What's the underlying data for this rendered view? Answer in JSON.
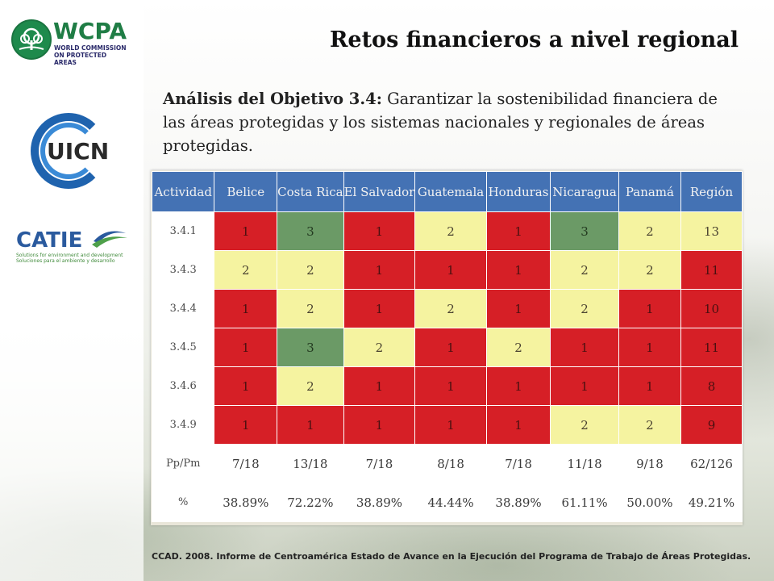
{
  "slide": {
    "title": "Retos financieros a nivel regional",
    "intro_lead": "Análisis del Objetivo 3.4:",
    "intro_text": " Garantizar la sostenibilidad financiera de las áreas protegidas y los sistemas nacionales y regionales de áreas protegidas.",
    "footer": "CCAD. 2008. Informe de Centroamérica Estado de Avance en la Ejecución del Programa de Trabajo de Áreas Protegidas."
  },
  "logos": {
    "wcpa": {
      "name": "WCPA",
      "line1": "WORLD COMMISSION",
      "line2": "ON PROTECTED AREAS",
      "icon": "tree-emblem-icon"
    },
    "uicn": {
      "name": "UICN",
      "icon": "ring-emblem-icon"
    },
    "catie": {
      "name": "CATIE",
      "line1": "Solutions for environment and development",
      "line2": "Soluciones para el ambiente y desarrollo",
      "icon": "swoosh-icon"
    }
  },
  "colors": {
    "red": "#d61f26",
    "yellow": "#f5f3a0",
    "green": "#6b9a66",
    "header": "#4472b4"
  },
  "table": {
    "headers": [
      "Actividad",
      "Belice",
      "Costa Rica",
      "El Salvador",
      "Guatemala",
      "Honduras",
      "Nicaragua",
      "Panamá",
      "Región"
    ],
    "rows": [
      {
        "label": "3.4.1",
        "cells": [
          {
            "v": "1",
            "c": "red"
          },
          {
            "v": "3",
            "c": "green"
          },
          {
            "v": "1",
            "c": "red"
          },
          {
            "v": "2",
            "c": "yellow"
          },
          {
            "v": "1",
            "c": "red"
          },
          {
            "v": "3",
            "c": "green"
          },
          {
            "v": "2",
            "c": "yellow"
          },
          {
            "v": "13",
            "c": "yellow"
          }
        ]
      },
      {
        "label": "3.4.3",
        "cells": [
          {
            "v": "2",
            "c": "yellow"
          },
          {
            "v": "2",
            "c": "yellow"
          },
          {
            "v": "1",
            "c": "red"
          },
          {
            "v": "1",
            "c": "red"
          },
          {
            "v": "1",
            "c": "red"
          },
          {
            "v": "2",
            "c": "yellow"
          },
          {
            "v": "2",
            "c": "yellow"
          },
          {
            "v": "11",
            "c": "red"
          }
        ]
      },
      {
        "label": "3.4.4",
        "cells": [
          {
            "v": "1",
            "c": "red"
          },
          {
            "v": "2",
            "c": "yellow"
          },
          {
            "v": "1",
            "c": "red"
          },
          {
            "v": "2",
            "c": "yellow"
          },
          {
            "v": "1",
            "c": "red"
          },
          {
            "v": "2",
            "c": "yellow"
          },
          {
            "v": "1",
            "c": "red"
          },
          {
            "v": "10",
            "c": "red"
          }
        ]
      },
      {
        "label": "3.4.5",
        "cells": [
          {
            "v": "1",
            "c": "red"
          },
          {
            "v": "3",
            "c": "green"
          },
          {
            "v": "2",
            "c": "yellow"
          },
          {
            "v": "1",
            "c": "red"
          },
          {
            "v": "2",
            "c": "yellow"
          },
          {
            "v": "1",
            "c": "red"
          },
          {
            "v": "1",
            "c": "red"
          },
          {
            "v": "11",
            "c": "red"
          }
        ]
      },
      {
        "label": "3.4.6",
        "cells": [
          {
            "v": "1",
            "c": "red"
          },
          {
            "v": "2",
            "c": "yellow"
          },
          {
            "v": "1",
            "c": "red"
          },
          {
            "v": "1",
            "c": "red"
          },
          {
            "v": "1",
            "c": "red"
          },
          {
            "v": "1",
            "c": "red"
          },
          {
            "v": "1",
            "c": "red"
          },
          {
            "v": "8",
            "c": "red"
          }
        ]
      },
      {
        "label": "3.4.9",
        "cells": [
          {
            "v": "1",
            "c": "red"
          },
          {
            "v": "1",
            "c": "red"
          },
          {
            "v": "1",
            "c": "red"
          },
          {
            "v": "1",
            "c": "red"
          },
          {
            "v": "1",
            "c": "red"
          },
          {
            "v": "2",
            "c": "yellow"
          },
          {
            "v": "2",
            "c": "yellow"
          },
          {
            "v": "9",
            "c": "red"
          }
        ]
      },
      {
        "label": "Pp/Pm",
        "cells": [
          {
            "v": "7/18",
            "c": "white"
          },
          {
            "v": "13/18",
            "c": "white"
          },
          {
            "v": "7/18",
            "c": "white"
          },
          {
            "v": "8/18",
            "c": "white"
          },
          {
            "v": "7/18",
            "c": "white"
          },
          {
            "v": "11/18",
            "c": "white"
          },
          {
            "v": "9/18",
            "c": "white"
          },
          {
            "v": "62/126",
            "c": "white"
          }
        ]
      },
      {
        "label": "%",
        "cells": [
          {
            "v": "38.89%",
            "c": "white"
          },
          {
            "v": "72.22%",
            "c": "white"
          },
          {
            "v": "38.89%",
            "c": "white"
          },
          {
            "v": "44.44%",
            "c": "white"
          },
          {
            "v": "38.89%",
            "c": "white"
          },
          {
            "v": "61.11%",
            "c": "white"
          },
          {
            "v": "50.00%",
            "c": "white"
          },
          {
            "v": "49.21%",
            "c": "white"
          }
        ]
      }
    ]
  }
}
